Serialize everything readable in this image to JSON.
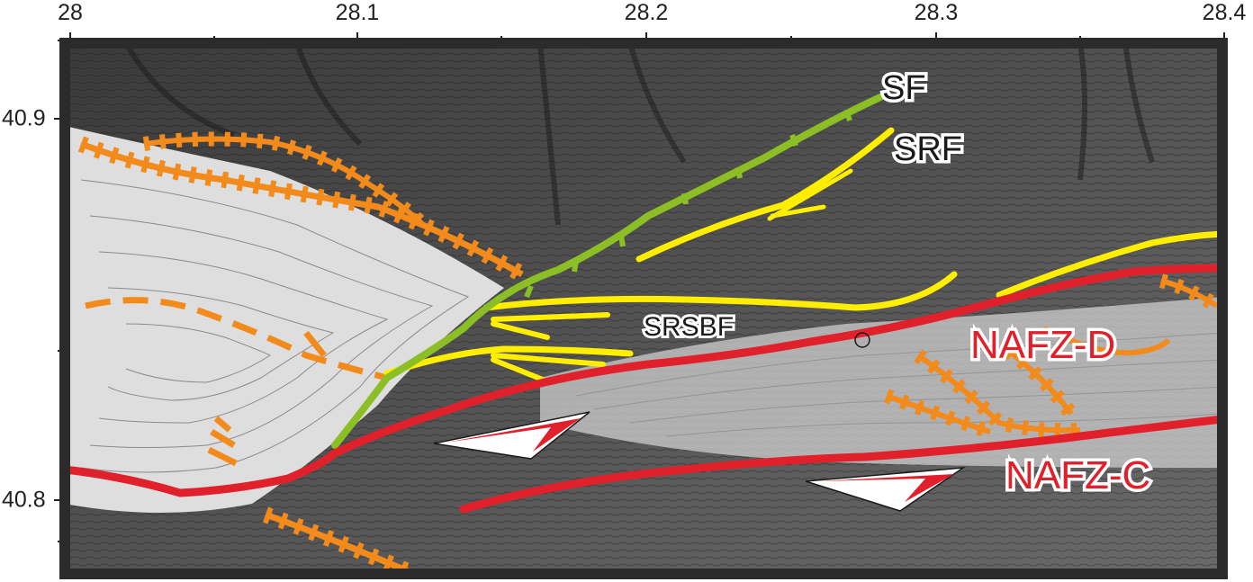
{
  "map": {
    "axis": {
      "x_ticks": [
        "28",
        "28.1",
        "28.2",
        "28.3",
        "28.4"
      ],
      "y_ticks": [
        "40.9",
        "40.8"
      ]
    },
    "fault_labels": {
      "sf": "SF",
      "srf": "SRF",
      "srsbf": "SRSBF",
      "nafz_d": "NAFZ-D",
      "nafz_c": "NAFZ-C"
    },
    "colors": {
      "frame": "#2b2b2b",
      "nafz_fault": "#e0202a",
      "sf_fault": "#8cbf26",
      "yellow_fault": "#ffee00",
      "slump_scarp": "#f28a1c",
      "label_text": "#1a1a1a"
    },
    "legend_symbols": [
      "left-lateral-motion-arrow",
      "hachured-scarp",
      "thrust-teeth"
    ]
  }
}
